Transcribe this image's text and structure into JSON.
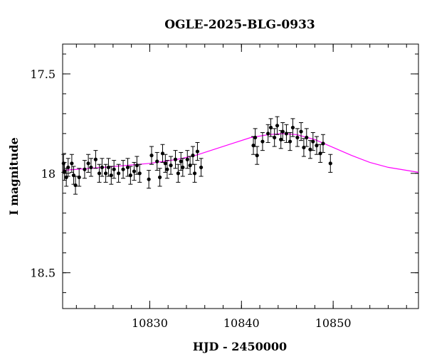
{
  "chart_data": {
    "type": "scatter",
    "title": "OGLE-2025-BLG-0933",
    "xlabel": "HJD - 2450000",
    "ylabel": "I magnitude",
    "xlim": [
      10820.5,
      10859.3
    ],
    "ylim": [
      18.68,
      17.35
    ],
    "y_inverted": true,
    "grid": false,
    "x_ticks": {
      "major": [
        10830,
        10840,
        10850
      ],
      "labels": [
        "10830",
        "10840",
        "10850"
      ],
      "minor_step": 2
    },
    "y_ticks": {
      "major": [
        17.5,
        18.0,
        18.5
      ],
      "labels": [
        "17.5",
        "18",
        "18.5"
      ],
      "minor_step": 0.1
    },
    "colors": {
      "data": "#000000",
      "model": "#ff00ff",
      "axes": "#000000"
    },
    "series": [
      {
        "kind": "points_with_errorbars",
        "x": [
          10820.6,
          10820.7,
          10820.9,
          10821.1,
          10821.5,
          10821.7,
          10821.9,
          10822.3,
          10822.9,
          10823.3,
          10823.6,
          10824.1,
          10824.5,
          10824.8,
          10825.2,
          10825.5,
          10825.8,
          10826.1,
          10826.6,
          10827.1,
          10827.6,
          10827.9,
          10828.3,
          10828.6,
          10828.9,
          10829.9,
          10830.2,
          10830.8,
          10831.1,
          10831.4,
          10831.7,
          10831.9,
          10832.3,
          10832.8,
          10833.1,
          10833.4,
          10833.6,
          10834.1,
          10834.4,
          10834.7,
          10834.9,
          10835.2,
          10835.6,
          10841.3,
          10841.5,
          10841.7,
          10842.3,
          10842.9,
          10843.2,
          10843.6,
          10843.9,
          10844.3,
          10844.5,
          10844.9,
          10845.3,
          10845.6,
          10846.1,
          10846.5,
          10846.8,
          10847.1,
          10847.5,
          10847.8,
          10848.2,
          10848.6,
          10848.9,
          10849.7
        ],
        "y": [
          17.95,
          17.99,
          18.02,
          17.97,
          17.95,
          18.01,
          18.06,
          18.02,
          17.98,
          17.95,
          17.97,
          17.93,
          18.0,
          17.97,
          18.0,
          17.97,
          18.01,
          17.98,
          18.0,
          17.98,
          17.97,
          18.01,
          17.99,
          17.96,
          18.0,
          18.03,
          17.91,
          17.94,
          18.02,
          17.9,
          17.95,
          17.98,
          17.96,
          17.93,
          18.0,
          17.94,
          17.97,
          17.93,
          17.96,
          17.91,
          18.0,
          17.89,
          17.97,
          17.86,
          17.82,
          17.91,
          17.84,
          17.8,
          17.77,
          17.82,
          17.76,
          17.83,
          17.79,
          17.8,
          17.84,
          17.77,
          17.82,
          17.79,
          17.87,
          17.82,
          17.88,
          17.84,
          17.86,
          17.9,
          17.85,
          17.95
        ],
        "error": 0.045
      },
      {
        "kind": "model_curve",
        "x": [
          10820.5,
          10825,
          10830,
          10833,
          10835,
          10837,
          10839,
          10841,
          10843,
          10844.5,
          10846,
          10848,
          10850,
          10852,
          10854,
          10856,
          10859.3
        ],
        "y": [
          17.985,
          17.97,
          17.95,
          17.93,
          17.91,
          17.88,
          17.85,
          17.82,
          17.805,
          17.8,
          17.805,
          17.83,
          17.87,
          17.91,
          17.945,
          17.97,
          17.995
        ]
      }
    ]
  }
}
